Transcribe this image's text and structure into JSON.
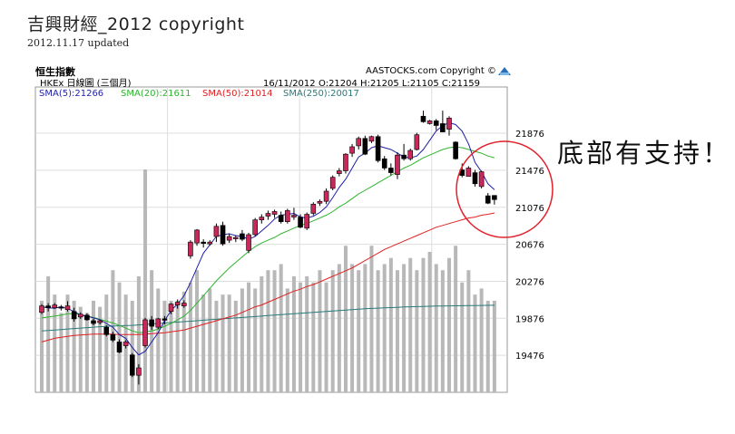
{
  "page": {
    "title": "吉興財經_2012 copyright",
    "subtitle": "2012.11.17 updated"
  },
  "chart_data": {
    "type": "candlestick",
    "title": "恒生指數",
    "subtitle": "HKEx 日線圖 (三個月)",
    "source": "AASTOCKS.com Copyright ©",
    "date_label": "16/11/2012",
    "ohlc_label": "O:21204  H:21205  L:21105  C:21159",
    "sma_labels": [
      {
        "text": "SMA(5):21266",
        "color": "#1f1fa8"
      },
      {
        "text": "SMA(20):21611",
        "color": "#2db52d"
      },
      {
        "text": "SMA(50):21014",
        "color": "#e02020"
      },
      {
        "text": "SMA(250):20017",
        "color": "#2a7a7a"
      }
    ],
    "ylim": [
      19076,
      22376
    ],
    "y_ticks": [
      19476,
      19876,
      20276,
      20676,
      21076,
      21476,
      21876
    ],
    "candles": [
      [
        19940,
        20030,
        19920,
        20010
      ],
      [
        20010,
        20040,
        19950,
        19990
      ],
      [
        19990,
        20040,
        19980,
        20020
      ],
      [
        20000,
        20020,
        19960,
        19990
      ],
      [
        19970,
        20060,
        19950,
        20010
      ],
      [
        19950,
        19990,
        19840,
        19870
      ],
      [
        19890,
        19940,
        19870,
        19920
      ],
      [
        19910,
        19930,
        19850,
        19860
      ],
      [
        19850,
        19870,
        19800,
        19820
      ],
      [
        19830,
        19860,
        19810,
        19850
      ],
      [
        19780,
        19800,
        19680,
        19700
      ],
      [
        19700,
        19730,
        19620,
        19640
      ],
      [
        19620,
        19650,
        19500,
        19510
      ],
      [
        19580,
        19640,
        19550,
        19620
      ],
      [
        19480,
        19500,
        19240,
        19260
      ],
      [
        19260,
        19380,
        19160,
        19340
      ],
      [
        19580,
        19880,
        19560,
        19860
      ],
      [
        19860,
        19900,
        19750,
        19790
      ],
      [
        19780,
        19880,
        19760,
        19870
      ],
      [
        19870,
        19900,
        19810,
        19860
      ],
      [
        19950,
        20040,
        19920,
        20030
      ],
      [
        20020,
        20080,
        19980,
        20050
      ],
      [
        20010,
        20070,
        19990,
        20040
      ],
      [
        20550,
        20720,
        20520,
        20700
      ],
      [
        20690,
        20840,
        20660,
        20830
      ],
      [
        20700,
        20730,
        20640,
        20690
      ],
      [
        20680,
        20720,
        20660,
        20700
      ],
      [
        20760,
        20900,
        20700,
        20870
      ],
      [
        20880,
        20920,
        20660,
        20680
      ],
      [
        20720,
        20790,
        20690,
        20760
      ],
      [
        20740,
        20770,
        20700,
        20750
      ],
      [
        20790,
        20830,
        20710,
        20730
      ],
      [
        20610,
        20800,
        20580,
        20780
      ],
      [
        20780,
        20960,
        20760,
        20940
      ],
      [
        20940,
        21000,
        20900,
        20970
      ],
      [
        20980,
        21040,
        20940,
        21010
      ],
      [
        21000,
        21050,
        20960,
        21030
      ],
      [
        20990,
        21030,
        20900,
        20920
      ],
      [
        20920,
        21060,
        20900,
        21040
      ],
      [
        20970,
        21070,
        20940,
        20990
      ],
      [
        20970,
        21000,
        20850,
        20860
      ],
      [
        20850,
        21020,
        20830,
        21000
      ],
      [
        21010,
        21130,
        20990,
        21110
      ],
      [
        21120,
        21160,
        21090,
        21140
      ],
      [
        21140,
        21280,
        21110,
        21250
      ],
      [
        21280,
        21420,
        21260,
        21400
      ],
      [
        21440,
        21500,
        21410,
        21470
      ],
      [
        21470,
        21660,
        21440,
        21650
      ],
      [
        21660,
        21760,
        21620,
        21730
      ],
      [
        21740,
        21840,
        21700,
        21820
      ],
      [
        21820,
        21850,
        21640,
        21650
      ],
      [
        21790,
        21850,
        21770,
        21840
      ],
      [
        21840,
        21860,
        21560,
        21580
      ],
      [
        21600,
        21630,
        21480,
        21500
      ],
      [
        21500,
        21550,
        21420,
        21450
      ],
      [
        21430,
        21670,
        21380,
        21640
      ],
      [
        21640,
        21760,
        21580,
        21600
      ],
      [
        21600,
        21710,
        21580,
        21690
      ],
      [
        21700,
        21880,
        21690,
        21860
      ],
      [
        22060,
        22120,
        21990,
        22000
      ],
      [
        21980,
        22020,
        21970,
        22010
      ],
      [
        22010,
        22030,
        21910,
        21960
      ],
      [
        21980,
        22120,
        21890,
        21890
      ],
      [
        21920,
        22060,
        21850,
        22040
      ],
      [
        21780,
        21790,
        21590,
        21600
      ],
      [
        21480,
        21550,
        21400,
        21420
      ],
      [
        21410,
        21520,
        21410,
        21500
      ],
      [
        21450,
        21480,
        21300,
        21330
      ],
      [
        21300,
        21470,
        21280,
        21460
      ],
      [
        21200,
        21230,
        21110,
        21120
      ],
      [
        21204,
        21205,
        21105,
        21159
      ]
    ],
    "sma5": [
      20000,
      19990,
      19985,
      20000,
      19980,
      19950,
      19910,
      19900,
      19880,
      19860,
      19820,
      19780,
      19700,
      19660,
      19560,
      19480,
      19520,
      19620,
      19720,
      19850,
      19960,
      20030,
      20120,
      20260,
      20420,
      20580,
      20670,
      20760,
      20780,
      20790,
      20770,
      20760,
      20730,
      20760,
      20820,
      20880,
      20950,
      20990,
      21000,
      21010,
      20970,
      20960,
      20980,
      21020,
      21080,
      21180,
      21290,
      21380,
      21500,
      21620,
      21660,
      21720,
      21740,
      21720,
      21700,
      21660,
      21620,
      21610,
      21630,
      21700,
      21800,
      21900,
      21960,
      21990,
      21970,
      21900,
      21760,
      21560,
      21460,
      21330,
      21266
    ],
    "sma20": [
      19880,
      19890,
      19900,
      19910,
      19925,
      19925,
      19915,
      19900,
      19885,
      19865,
      19845,
      19825,
      19800,
      19770,
      19740,
      19720,
      19730,
      19740,
      19760,
      19790,
      19820,
      19860,
      19900,
      19960,
      20040,
      20120,
      20200,
      20280,
      20350,
      20420,
      20480,
      20540,
      20600,
      20650,
      20690,
      20720,
      20750,
      20790,
      20820,
      20850,
      20880,
      20900,
      20930,
      20960,
      20990,
      21030,
      21080,
      21120,
      21170,
      21220,
      21260,
      21300,
      21340,
      21380,
      21420,
      21460,
      21500,
      21530,
      21570,
      21610,
      21640,
      21670,
      21700,
      21720,
      21730,
      21720,
      21700,
      21680,
      21660,
      21630,
      21611
    ],
    "sma50": [
      19620,
      19640,
      19660,
      19670,
      19680,
      19690,
      19695,
      19700,
      19705,
      19705,
      19705,
      19705,
      19700,
      19700,
      19700,
      19700,
      19705,
      19710,
      19715,
      19720,
      19730,
      19740,
      19750,
      19770,
      19790,
      19810,
      19830,
      19850,
      19870,
      19890,
      19910,
      19940,
      19970,
      20000,
      20020,
      20050,
      20080,
      20110,
      20140,
      20170,
      20190,
      20220,
      20240,
      20270,
      20300,
      20330,
      20360,
      20390,
      20420,
      20460,
      20500,
      20540,
      20580,
      20620,
      20650,
      20680,
      20710,
      20740,
      20770,
      20800,
      20830,
      20860,
      20880,
      20900,
      20920,
      20940,
      20960,
      20970,
      20990,
      21000,
      21014
    ],
    "sma250": [
      19740,
      19745,
      19750,
      19755,
      19760,
      19765,
      19770,
      19775,
      19780,
      19785,
      19790,
      19792,
      19795,
      19798,
      19800,
      19805,
      19810,
      19815,
      19820,
      19825,
      19830,
      19835,
      19840,
      19845,
      19850,
      19855,
      19860,
      19865,
      19870,
      19875,
      19880,
      19885,
      19890,
      19895,
      19900,
      19905,
      19910,
      19915,
      19920,
      19925,
      19930,
      19935,
      19940,
      19945,
      19950,
      19955,
      19960,
      19965,
      19970,
      19975,
      19980,
      19983,
      19986,
      19989,
      19992,
      19995,
      19998,
      20000,
      20002,
      20004,
      20006,
      20008,
      20009,
      20010,
      20011,
      20012,
      20013,
      20014,
      20015,
      20016,
      20017
    ],
    "volume": [
      0.3,
      0.38,
      0.32,
      0.26,
      0.32,
      0.3,
      0.28,
      0.26,
      0.3,
      0.28,
      0.32,
      0.4,
      0.36,
      0.32,
      0.3,
      0.38,
      0.73,
      0.4,
      0.34,
      0.3,
      0.3,
      0.3,
      0.33,
      0.36,
      0.4,
      0.32,
      0.34,
      0.3,
      0.32,
      0.32,
      0.3,
      0.34,
      0.36,
      0.34,
      0.38,
      0.4,
      0.4,
      0.42,
      0.34,
      0.38,
      0.36,
      0.38,
      0.36,
      0.4,
      0.36,
      0.4,
      0.42,
      0.48,
      0.42,
      0.4,
      0.42,
      0.48,
      0.4,
      0.42,
      0.44,
      0.4,
      0.42,
      0.44,
      0.4,
      0.44,
      0.46,
      0.42,
      0.4,
      0.44,
      0.48,
      0.36,
      0.4,
      0.32,
      0.34,
      0.3,
      0.3
    ]
  },
  "annotation": {
    "text": "底部有支持！",
    "circle_color": "#e0202a"
  }
}
